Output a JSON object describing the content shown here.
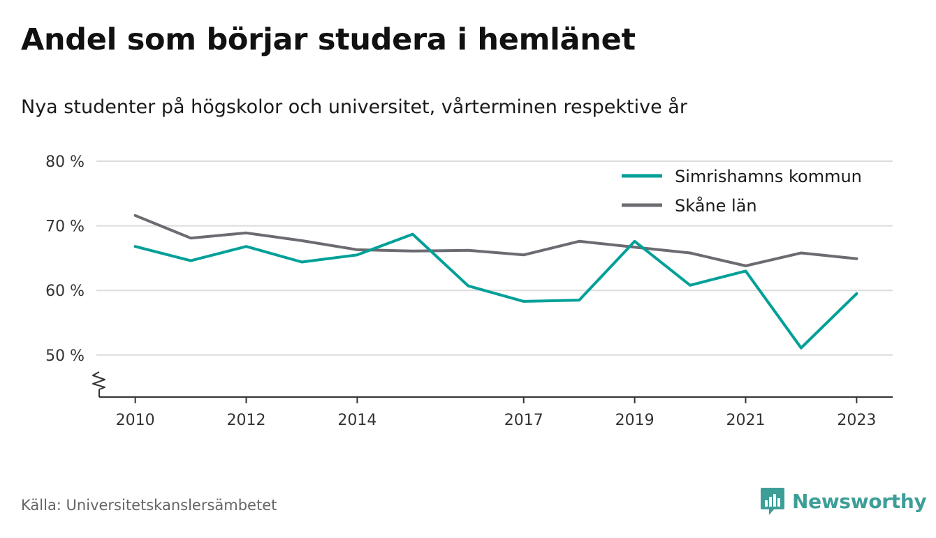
{
  "header": {
    "title": "Andel som börjar studera i hemlänet",
    "subtitle": "Nya studenter på högskolor och universitet, vårterminen respektive år"
  },
  "footer": {
    "source": "Källa: Universitetskanslersämbetet",
    "brand": "Newsworthy",
    "brand_icon": "bar-chart-speech-bubble-icon",
    "brand_color": "#3d9e98"
  },
  "chart_data": {
    "type": "line",
    "x": [
      2010,
      2011,
      2012,
      2013,
      2014,
      2015,
      2016,
      2017,
      2018,
      2019,
      2020,
      2021,
      2022,
      2023
    ],
    "x_tick_values": [
      2010,
      2012,
      2014,
      2017,
      2019,
      2021,
      2023
    ],
    "x_tick_labels": [
      "2010",
      "2012",
      "2014",
      "2017",
      "2019",
      "2021",
      "2023"
    ],
    "y_tick_values": [
      50,
      60,
      70,
      80
    ],
    "y_tick_labels": [
      "50 %",
      "60 %",
      "70 %",
      "80 %"
    ],
    "ylim": [
      43.5,
      80
    ],
    "xlim": [
      2009.35,
      2023.65
    ],
    "y_axis_break": true,
    "grid": true,
    "legend_position": "top-right",
    "series": [
      {
        "name": "Simrishamns kommun",
        "color": "#00a098",
        "values": [
          66.8,
          64.6,
          66.8,
          64.4,
          65.5,
          68.7,
          60.7,
          58.3,
          58.5,
          67.6,
          60.8,
          63.0,
          51.1,
          59.5
        ]
      },
      {
        "name": "Skåne län",
        "color": "#6c6b72",
        "values": [
          71.6,
          68.1,
          68.9,
          67.7,
          66.3,
          66.1,
          66.2,
          65.5,
          67.6,
          66.7,
          65.8,
          63.8,
          65.8,
          64.9
        ]
      }
    ]
  }
}
